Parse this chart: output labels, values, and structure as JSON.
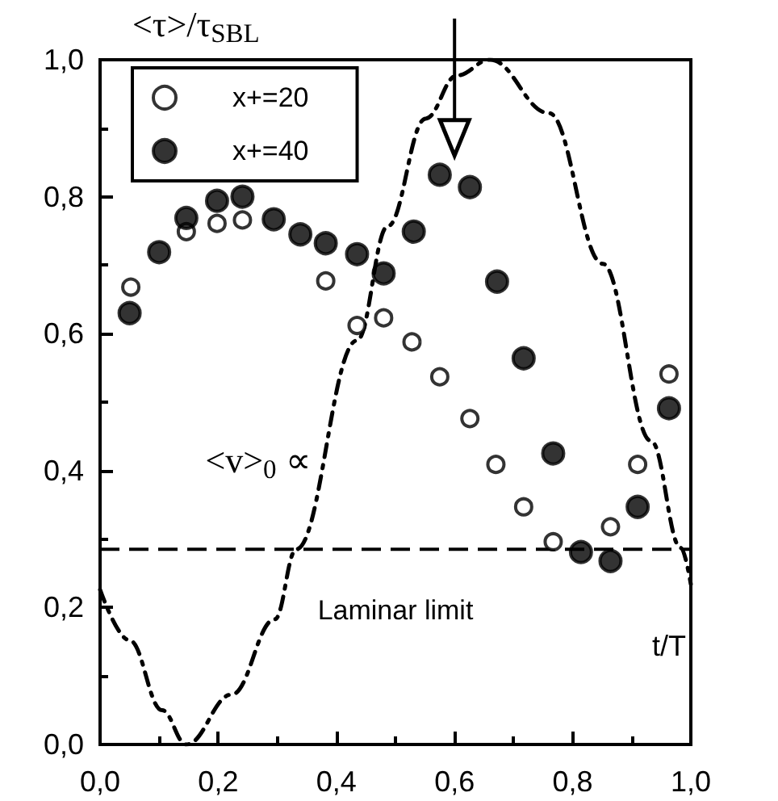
{
  "chart_data": {
    "type": "scatter",
    "xlabel": "t/T",
    "ylabel": "<τ>/τ$_{SBL}$",
    "xlim": [
      0,
      1
    ],
    "ylim": [
      0,
      1
    ],
    "xticks": [
      {
        "value": 0,
        "label": "0,0"
      },
      {
        "value": 0.2,
        "label": "0,2"
      },
      {
        "value": 0.4,
        "label": "0,4"
      },
      {
        "value": 0.6,
        "label": "0,6"
      },
      {
        "value": 0.8,
        "label": "0,8"
      },
      {
        "value": 1,
        "label": "1,0"
      }
    ],
    "yticks": [
      {
        "value": 0,
        "label": "0,0"
      },
      {
        "value": 0.2,
        "label": "0,2"
      },
      {
        "value": 0.4,
        "label": "0,4"
      },
      {
        "value": 0.6,
        "label": "0,6"
      },
      {
        "value": 0.8,
        "label": "0,8"
      },
      {
        "value": 1,
        "label": "1,0"
      }
    ],
    "grid": false,
    "legend": "top left",
    "series": [
      {
        "name": "x+=20",
        "color": "#000000",
        "marker": "open circle",
        "x": [
          0.052,
          0.146,
          0.198,
          0.241,
          0.382,
          0.435,
          0.48,
          0.528,
          0.575,
          0.626,
          0.67,
          0.717,
          0.767,
          0.864,
          0.91,
          0.963
        ],
        "values": [
          0.668,
          0.749,
          0.761,
          0.766,
          0.677,
          0.612,
          0.623,
          0.588,
          0.537,
          0.476,
          0.409,
          0.347,
          0.296,
          0.318,
          0.409,
          0.541
        ]
      },
      {
        "name": "x+=40",
        "color": "#000000",
        "marker": "circle",
        "x": [
          0.05,
          0.1,
          0.146,
          0.198,
          0.241,
          0.294,
          0.339,
          0.382,
          0.435,
          0.48,
          0.531,
          0.575,
          0.626,
          0.672,
          0.717,
          0.767,
          0.814,
          0.864,
          0.91,
          0.963
        ],
        "values": [
          0.63,
          0.719,
          0.769,
          0.794,
          0.8,
          0.767,
          0.745,
          0.732,
          0.716,
          0.688,
          0.749,
          0.832,
          0.814,
          0.676,
          0.564,
          0.425,
          0.281,
          0.268,
          0.347,
          0.491
        ]
      },
      {
        "type": "line",
        "color": "#000000",
        "line_style": "dashdot",
        "marker": "none",
        "x": [
          0,
          0.05,
          0.105,
          0.146,
          0.223,
          0.296,
          0.332,
          0.435,
          0.487,
          0.551,
          0.604,
          0.66,
          0.76,
          0.851,
          0.933,
          0.983,
          1
        ],
        "values": [
          0.226,
          0.152,
          0.05,
          0,
          0.073,
          0.183,
          0.285,
          0.59,
          0.757,
          0.914,
          0.977,
          1,
          0.922,
          0.702,
          0.443,
          0.287,
          0.234
        ]
      }
    ],
    "ref_lines": [
      {
        "axis": "y",
        "value": 0.285,
        "label": "Laminar limit",
        "line_style": "dashed",
        "color": "#000000"
      }
    ],
    "annotations": [
      "<v>$_{0}$ ∝"
    ]
  }
}
